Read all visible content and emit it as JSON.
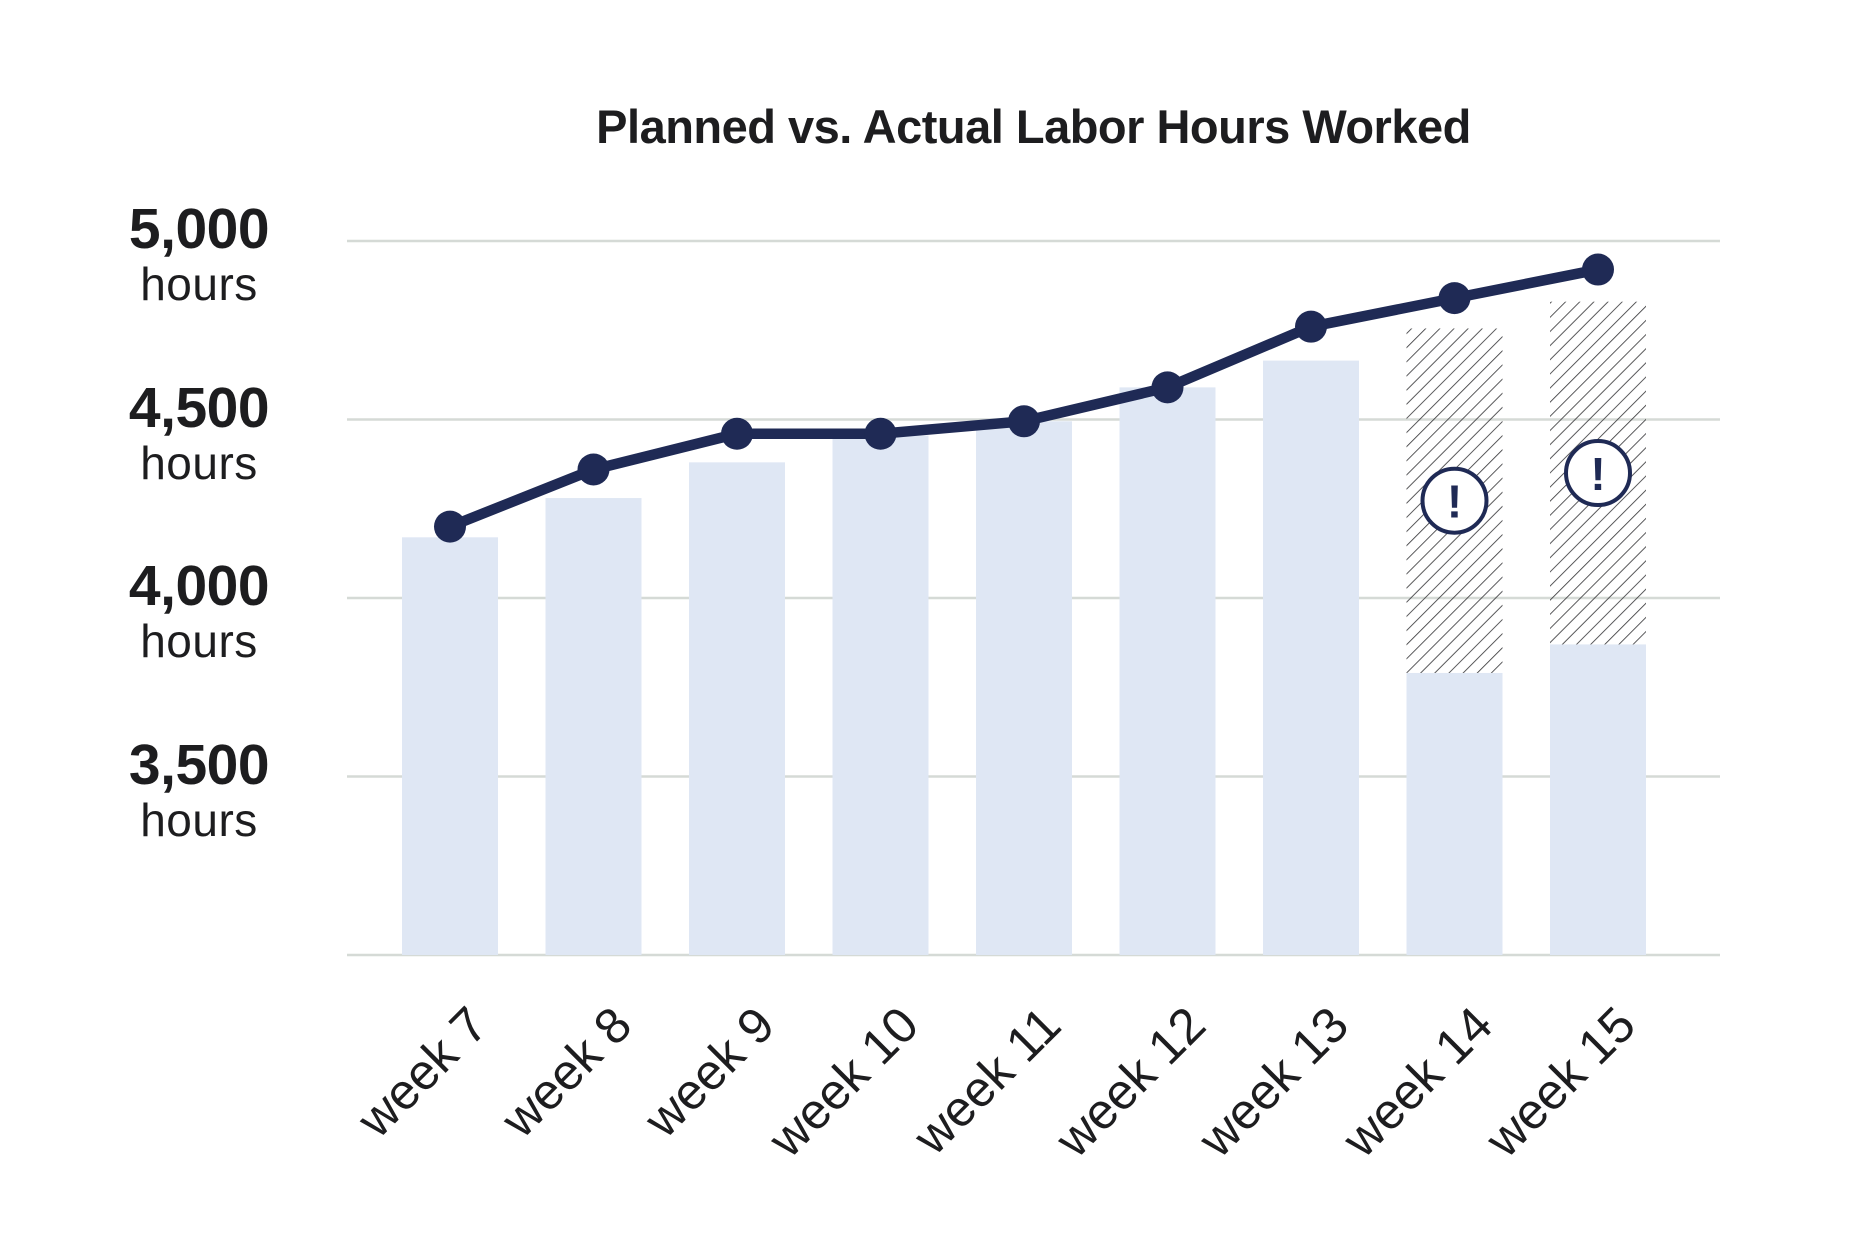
{
  "chart_data": {
    "type": "combo",
    "title": "Planned vs. Actual Labor Hours Worked",
    "categories": [
      "week 7",
      "week 8",
      "week 9",
      "week 10",
      "week 11",
      "week 12",
      "week 13",
      "week 14",
      "week 15"
    ],
    "series": [
      {
        "name": "scheduled-hours-bars",
        "type": "bar",
        "values": [
          4170,
          4280,
          4380,
          4455,
          4495,
          4590,
          4665,
          3790,
          3870
        ]
      },
      {
        "name": "unfilled-at-risk-hours-hatched",
        "type": "bar",
        "pattern": "diagonal-hatch",
        "base_values": [
          null,
          null,
          null,
          null,
          null,
          null,
          null,
          3790,
          3870
        ],
        "top_values": [
          null,
          null,
          null,
          null,
          null,
          null,
          null,
          4755,
          4830
        ]
      },
      {
        "name": "actual-hours-line",
        "type": "line",
        "values": [
          4200,
          4360,
          4460,
          4460,
          4495,
          4590,
          4760,
          4840,
          4920
        ]
      }
    ],
    "y_ticks": [
      {
        "value": 5000,
        "label": "5,000",
        "unit": "hours"
      },
      {
        "value": 4500,
        "label": "4,500",
        "unit": "hours"
      },
      {
        "value": 4000,
        "label": "4,000",
        "unit": "hours"
      },
      {
        "value": 3500,
        "label": "3,500",
        "unit": "hours"
      }
    ],
    "ylim": [
      3000,
      5000
    ],
    "grid": true,
    "legend": "none",
    "alerts": [
      {
        "category": "week 14",
        "glyph": "!"
      },
      {
        "category": "week 15",
        "glyph": "!"
      }
    ],
    "alert_glyph": "!"
  },
  "colors": {
    "background": "#FFFFFF",
    "bar_fill": "#DFE7F4",
    "line": "#1F2A55",
    "gridline": "#D5DAD6",
    "hatch_line": "#3C3C3E",
    "text": "#1D1D1F",
    "alert_fill": "#FFFFFF"
  }
}
